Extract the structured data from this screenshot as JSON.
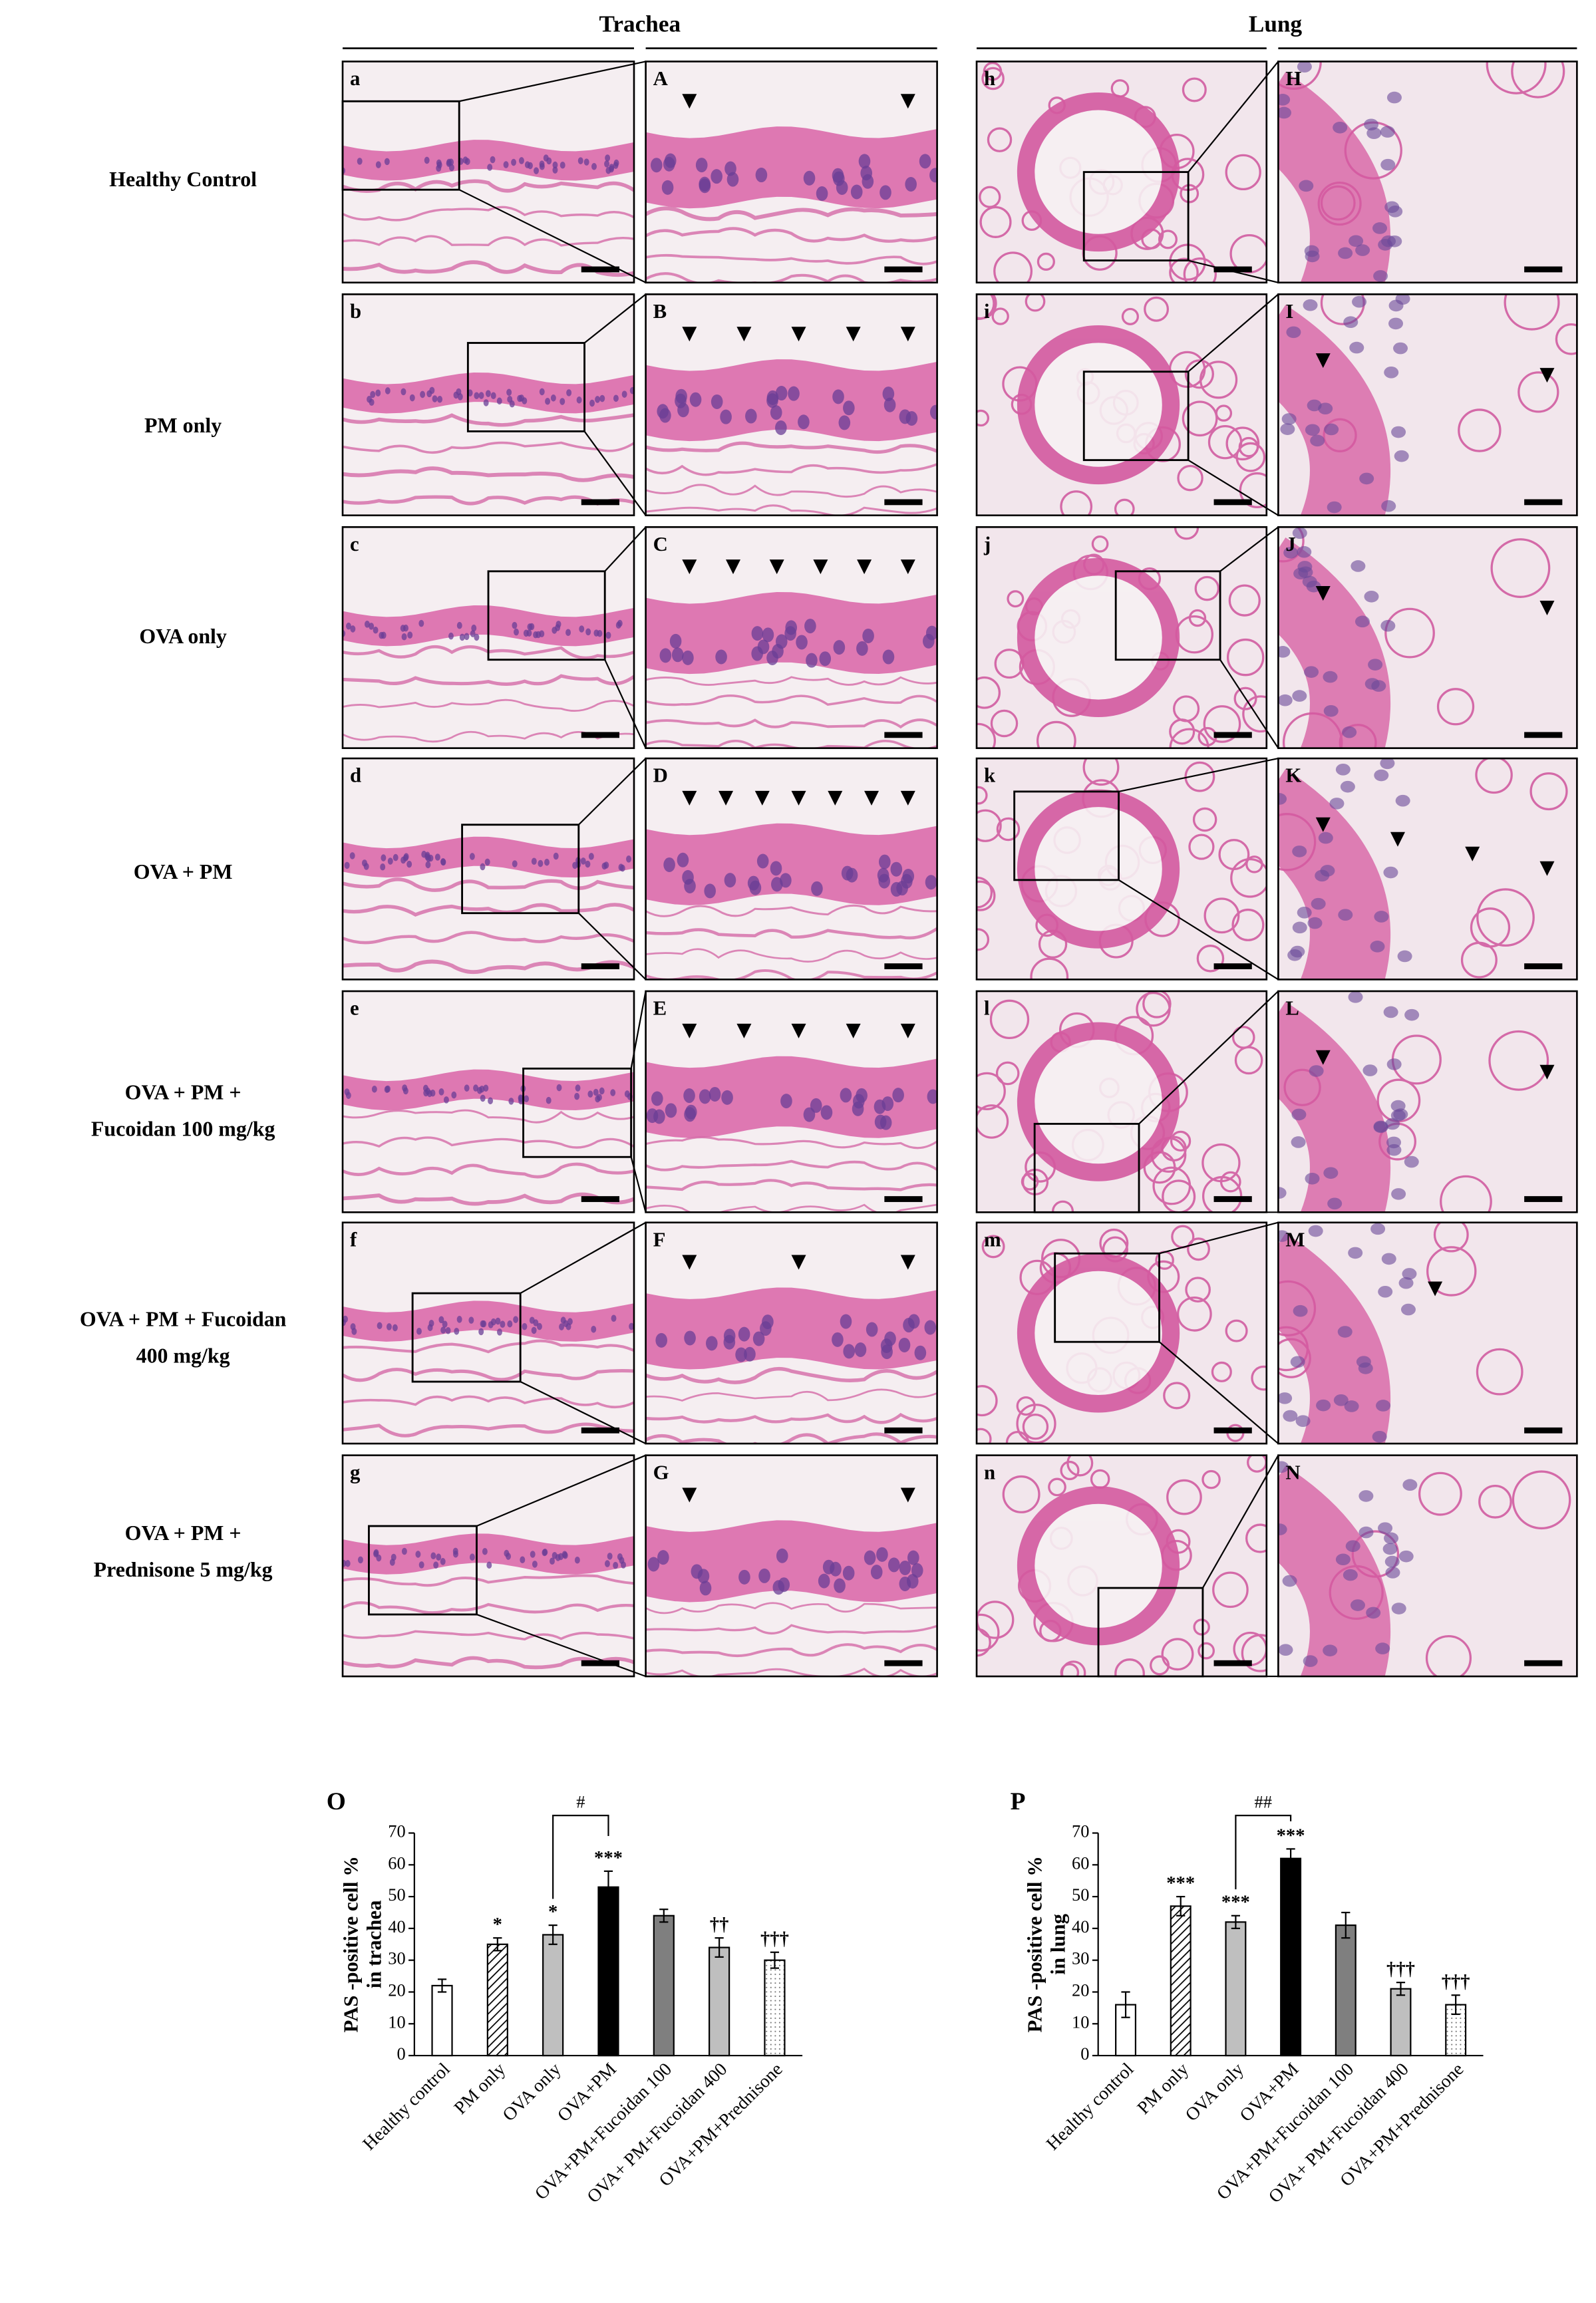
{
  "headers": [
    "Trachea",
    "Lung"
  ],
  "row_labels": [
    [
      "Healthy Control"
    ],
    [
      "PM only"
    ],
    [
      "OVA only"
    ],
    [
      "OVA + PM"
    ],
    [
      "OVA + PM +",
      "Fucoidan 100 mg/kg"
    ],
    [
      "OVA + PM +  Fucoidan",
      "400 mg/kg"
    ],
    [
      "OVA + PM +",
      "Prednisone 5 mg/kg"
    ]
  ],
  "panel_letters": [
    [
      "a",
      "A",
      "h",
      "H"
    ],
    [
      "b",
      "B",
      "i",
      "I"
    ],
    [
      "c",
      "C",
      "j",
      "J"
    ],
    [
      "d",
      "D",
      "k",
      "K"
    ],
    [
      "e",
      "E",
      "l",
      "L"
    ],
    [
      "f",
      "F",
      "m",
      "M"
    ],
    [
      "g",
      "G",
      "n",
      "N"
    ]
  ],
  "chart_data": [
    {
      "type": "bar",
      "panel": "O",
      "y_label": [
        "PAS -positive cell %",
        "in trachea"
      ],
      "categories": [
        "Healthy control",
        "PM only",
        "OVA only",
        "OVA+PM",
        "OVA+PM+Fucoidan 100",
        "OVA+ PM+Fucoidan 400",
        "OVA+PM+Prednisone"
      ],
      "values": [
        22,
        35,
        38,
        53,
        44,
        34,
        30
      ],
      "errors": [
        2,
        2,
        3,
        5,
        2,
        3,
        2.5
      ],
      "significance": [
        null,
        "*",
        "*",
        "***",
        null,
        "††",
        "†††"
      ],
      "colors": [
        "#ffffff",
        "#ffffff",
        "#bfbfbf",
        "#000000",
        "#7f7f7f",
        "#bfbfbf",
        "#ffffff"
      ],
      "patterns": [
        "solid",
        "hatch",
        "solid",
        "solid",
        "solid",
        "solid",
        "dots"
      ],
      "comparison": {
        "between": [
          2,
          3
        ],
        "label": "#"
      },
      "ylim": [
        0,
        70
      ],
      "yticks": [
        0,
        10,
        20,
        30,
        40,
        50,
        60,
        70
      ]
    },
    {
      "type": "bar",
      "panel": "P",
      "y_label": [
        "PAS -positive cell %",
        "in lung"
      ],
      "categories": [
        "Healthy control",
        "PM only",
        "OVA only",
        "OVA+PM",
        "OVA+PM+Fucoidan 100",
        "OVA+ PM+Fucoidan 400",
        "OVA+PM+Prednisone"
      ],
      "values": [
        16,
        47,
        42,
        62,
        41,
        21,
        16
      ],
      "errors": [
        4,
        3,
        2,
        3,
        4,
        2,
        3
      ],
      "significance": [
        null,
        "***",
        "***",
        "***",
        null,
        "†††",
        "†††"
      ],
      "colors": [
        "#ffffff",
        "#ffffff",
        "#bfbfbf",
        "#000000",
        "#7f7f7f",
        "#bfbfbf",
        "#ffffff"
      ],
      "patterns": [
        "solid",
        "hatch",
        "solid",
        "solid",
        "solid",
        "solid",
        "dots"
      ],
      "comparison": {
        "between": [
          2,
          3
        ],
        "label": "##"
      },
      "ylim": [
        0,
        70
      ],
      "yticks": [
        0,
        10,
        20,
        30,
        40,
        50,
        60,
        70
      ]
    }
  ]
}
